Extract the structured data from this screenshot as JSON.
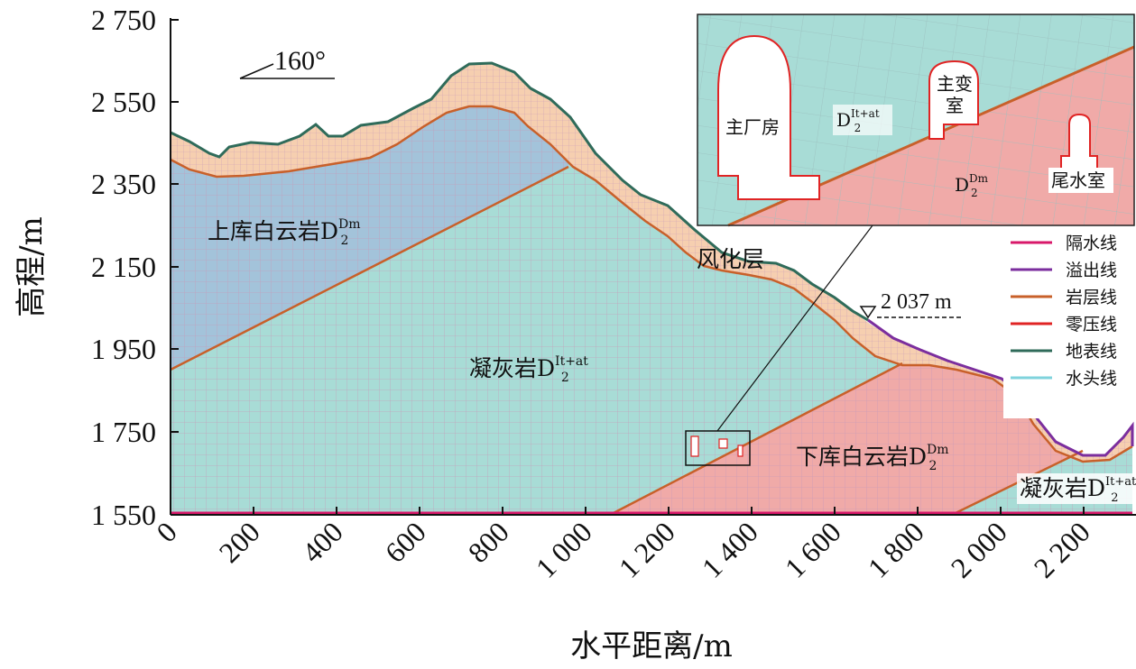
{
  "axes": {
    "x_title": "水平距离/m",
    "y_title": "高程/m",
    "x_ticks": [
      "0",
      "200",
      "400",
      "600",
      "800",
      "1 000",
      "1 200",
      "1 400",
      "1 600",
      "1 800",
      "2 000",
      "2 200"
    ],
    "y_ticks": [
      "2 750",
      "2 550",
      "2 350",
      "2 150",
      "1 950",
      "1 750",
      "1 550"
    ]
  },
  "annotations": {
    "angle": "160°",
    "water_level": "2 037 m"
  },
  "regions": {
    "upper_dolomite_text": "上库白云岩D",
    "upper_dolomite_sup": "Dm",
    "upper_dolomite_sub": "2",
    "tuff_text": "凝灰岩D",
    "tuff_sup": "It+at",
    "tuff_sub": "2",
    "weathered": "风化层",
    "lower_dolomite_text": "下库白云岩D",
    "lower_dolomite_sup": "Dm",
    "lower_dolomite_sub": "2",
    "tuff_right_text": "凝灰岩D",
    "tuff_right_sup": "It+at",
    "tuff_right_sub": "2"
  },
  "inset": {
    "main_powerhouse": "主厂房",
    "transformer_line1": "主变",
    "transformer_line2": "室",
    "tailrace": "尾水室",
    "tuff_label": "D",
    "tuff_sup": "It+at",
    "tuff_sub": "2",
    "dolomite_label": "D",
    "dolomite_sup": "Dm",
    "dolomite_sub": "2"
  },
  "legend": [
    {
      "label": "隔水线",
      "color": "#d8186a"
    },
    {
      "label": "溢出线",
      "color": "#7b2e9e"
    },
    {
      "label": "岩层线",
      "color": "#c8602a"
    },
    {
      "label": "零压线",
      "color": "#e02424"
    },
    {
      "label": "地表线",
      "color": "#2f6b5a"
    },
    {
      "label": "水头线",
      "color": "#7fd3dc"
    }
  ],
  "colors": {
    "tuff": "#a8dcd6",
    "upper_dolomite": "#a3c3da",
    "lower_dolomite": "#f0aaa8",
    "weathered": "#f6cfb0",
    "mesh": "#c79ab8"
  }
}
